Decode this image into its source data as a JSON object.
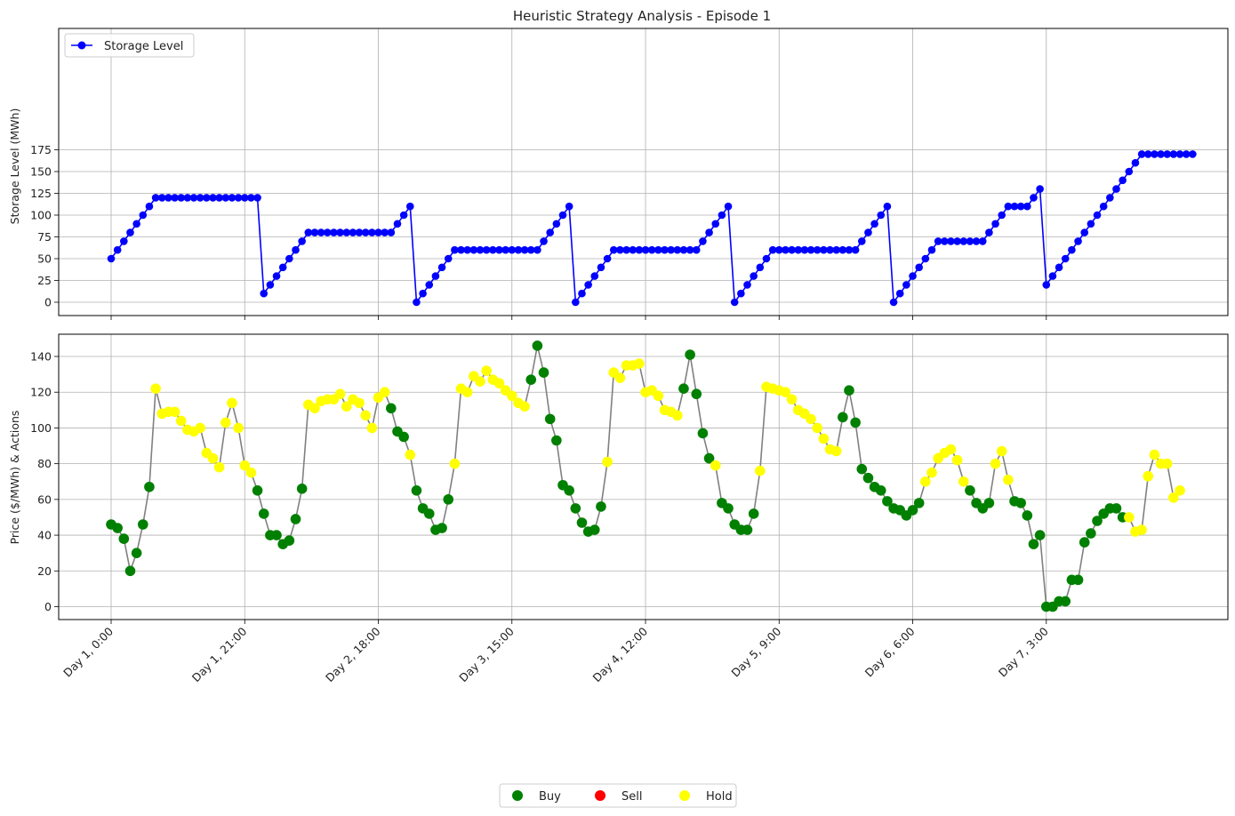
{
  "chart_data": [
    {
      "type": "line",
      "title": "Heuristic Strategy Analysis - Episode 1",
      "xlabel": "",
      "ylabel": "Storage Level (MWh)",
      "ylim": [
        -10,
        178
      ],
      "yticks": [
        0,
        25,
        50,
        75,
        100,
        125,
        150,
        175
      ],
      "grid": true,
      "legend": "top-left",
      "series": [
        {
          "name": "Storage Level",
          "color": "#0000ff",
          "marker": "circle",
          "x_start_hour": 0,
          "values": [
            50,
            60,
            70,
            80,
            90,
            100,
            110,
            120,
            120,
            120,
            120,
            120,
            120,
            120,
            120,
            120,
            120,
            120,
            120,
            120,
            120,
            120,
            120,
            120,
            10,
            20,
            30,
            40,
            50,
            60,
            70,
            80,
            80,
            80,
            80,
            80,
            80,
            80,
            80,
            80,
            80,
            80,
            80,
            80,
            80,
            90,
            100,
            110,
            0,
            10,
            20,
            30,
            40,
            50,
            60,
            60,
            60,
            60,
            60,
            60,
            60,
            60,
            60,
            60,
            60,
            60,
            60,
            60,
            70,
            80,
            90,
            100,
            110,
            0,
            10,
            20,
            30,
            40,
            50,
            60,
            60,
            60,
            60,
            60,
            60,
            60,
            60,
            60,
            60,
            60,
            60,
            60,
            60,
            70,
            80,
            90,
            100,
            110,
            0,
            10,
            20,
            30,
            40,
            50,
            60,
            60,
            60,
            60,
            60,
            60,
            60,
            60,
            60,
            60,
            60,
            60,
            60,
            60,
            70,
            80,
            90,
            100,
            110,
            0,
            10,
            20,
            30,
            40,
            50,
            60,
            70,
            70,
            70,
            70,
            70,
            70,
            70,
            70,
            80,
            90,
            100,
            110,
            110,
            110,
            110,
            120,
            130,
            20,
            30,
            40,
            50,
            60,
            70,
            80,
            90,
            100,
            110,
            120,
            130,
            140,
            150,
            160,
            170,
            170,
            170,
            170,
            170,
            170,
            170,
            170,
            170
          ]
        }
      ]
    },
    {
      "type": "scatter",
      "xlabel": "",
      "ylabel": "Price ($/MWh) & Actions",
      "ylim": [
        -7,
        152
      ],
      "yticks": [
        0,
        20,
        40,
        60,
        80,
        100,
        120,
        140
      ],
      "grid": true,
      "line_color": "#808080",
      "x_start_hour": 0,
      "x_tick_labels": [
        "Day 1, 0:00",
        "Day 1, 21:00",
        "Day 2, 18:00",
        "Day 3, 15:00",
        "Day 4, 12:00",
        "Day 5, 9:00",
        "Day 6, 6:00",
        "Day 7, 3:00"
      ],
      "x_tick_hours": [
        0,
        21,
        42,
        63,
        84,
        105,
        126,
        147
      ],
      "legend": "bottom-center",
      "action_legend": [
        {
          "label": "Buy",
          "color": "#008000"
        },
        {
          "label": "Sell",
          "color": "#ff0000"
        },
        {
          "label": "Hold",
          "color": "#ffff00"
        }
      ],
      "prices": [
        46,
        44,
        38,
        20,
        30,
        46,
        67,
        122,
        108,
        109,
        109,
        104,
        99,
        98,
        100,
        86,
        83,
        78,
        103,
        114,
        100,
        79,
        75,
        65,
        52,
        40,
        40,
        35,
        37,
        49,
        66,
        113,
        111,
        115,
        116,
        116,
        119,
        112,
        116,
        114,
        107,
        100,
        117,
        120,
        111,
        98,
        95,
        85,
        65,
        55,
        52,
        43,
        44,
        60,
        80,
        122,
        120,
        129,
        126,
        132,
        127,
        125,
        121,
        118,
        114,
        112,
        127,
        146,
        131,
        105,
        93,
        68,
        65,
        55,
        47,
        42,
        43,
        56,
        81,
        131,
        128,
        135,
        135,
        136,
        120,
        121,
        118,
        110,
        109,
        107,
        122,
        141,
        119,
        97,
        83,
        79,
        58,
        55,
        46,
        43,
        43,
        52,
        76,
        123,
        122,
        121,
        120,
        116,
        110,
        108,
        105,
        100,
        94,
        88,
        87,
        106,
        121,
        103,
        77,
        72,
        67,
        65,
        59,
        55,
        54,
        51,
        54,
        58,
        70,
        75,
        83,
        86,
        88,
        82,
        70,
        65,
        58,
        55,
        58,
        80,
        87,
        71,
        59,
        58,
        51,
        35,
        40,
        0,
        0,
        3,
        3,
        15,
        15,
        36,
        41,
        48,
        52,
        55,
        55,
        50,
        50,
        42,
        43,
        73,
        85,
        80,
        80,
        61,
        65
      ],
      "actions": [
        "Buy",
        "Buy",
        "Buy",
        "Buy",
        "Buy",
        "Buy",
        "Buy",
        "Hold",
        "Hold",
        "Hold",
        "Hold",
        "Hold",
        "Hold",
        "Hold",
        "Hold",
        "Hold",
        "Hold",
        "Hold",
        "Hold",
        "Hold",
        "Hold",
        "Hold",
        "Hold",
        "Buy",
        "Buy",
        "Buy",
        "Buy",
        "Buy",
        "Buy",
        "Buy",
        "Buy",
        "Hold",
        "Hold",
        "Hold",
        "Hold",
        "Hold",
        "Hold",
        "Hold",
        "Hold",
        "Hold",
        "Hold",
        "Hold",
        "Hold",
        "Hold",
        "Buy",
        "Buy",
        "Buy",
        "Hold",
        "Buy",
        "Buy",
        "Buy",
        "Buy",
        "Buy",
        "Buy",
        "Hold",
        "Hold",
        "Hold",
        "Hold",
        "Hold",
        "Hold",
        "Hold",
        "Hold",
        "Hold",
        "Hold",
        "Hold",
        "Hold",
        "Buy",
        "Buy",
        "Buy",
        "Buy",
        "Buy",
        "Buy",
        "Buy",
        "Buy",
        "Buy",
        "Buy",
        "Buy",
        "Buy",
        "Hold",
        "Hold",
        "Hold",
        "Hold",
        "Hold",
        "Hold",
        "Hold",
        "Hold",
        "Hold",
        "Hold",
        "Hold",
        "Hold",
        "Buy",
        "Buy",
        "Buy",
        "Buy",
        "Buy",
        "Hold",
        "Buy",
        "Buy",
        "Buy",
        "Buy",
        "Buy",
        "Buy",
        "Hold",
        "Hold",
        "Hold",
        "Hold",
        "Hold",
        "Hold",
        "Hold",
        "Hold",
        "Hold",
        "Hold",
        "Hold",
        "Hold",
        "Hold",
        "Buy",
        "Buy",
        "Buy",
        "Buy",
        "Buy",
        "Buy",
        "Buy",
        "Buy",
        "Buy",
        "Buy",
        "Buy",
        "Buy",
        "Buy",
        "Hold",
        "Hold",
        "Hold",
        "Hold",
        "Hold",
        "Hold",
        "Hold",
        "Buy",
        "Buy",
        "Buy",
        "Buy",
        "Hold",
        "Hold",
        "Hold",
        "Buy",
        "Buy",
        "Buy",
        "Buy",
        "Buy",
        "Buy",
        "Buy",
        "Buy",
        "Buy",
        "Buy",
        "Buy",
        "Buy",
        "Buy",
        "Buy",
        "Buy",
        "Buy",
        "Buy",
        "Buy",
        "Hold",
        "Hold",
        "Hold",
        "Hold",
        "Hold",
        "Hold",
        "Hold",
        "Hold",
        "Hold"
      ]
    }
  ]
}
